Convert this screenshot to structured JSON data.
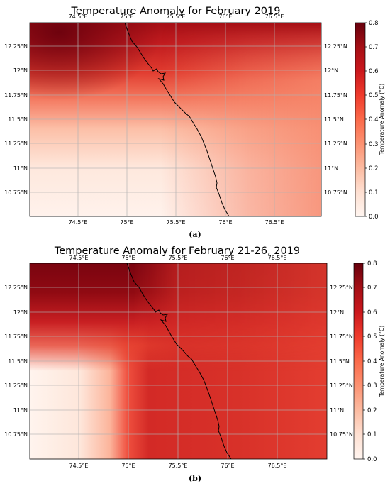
{
  "panels": [
    {
      "title": "Temperature Anomaly for February 2019",
      "caption": "(a)"
    },
    {
      "title": "Temperature Anomaly for February 21-26, 2019",
      "caption": "(b)"
    }
  ],
  "colorbar": {
    "label": "Temperature Anomaly (°C)",
    "ticks": [
      "0.0",
      "0.1",
      "0.2",
      "0.3",
      "0.4",
      "0.5",
      "0.6",
      "0.7",
      "0.8"
    ],
    "range": [
      0,
      0.8
    ],
    "colormap": "Reds"
  },
  "lon_ticks": [
    "74.5°E",
    "75°E",
    "75.5°E",
    "76°E",
    "76.5°E"
  ],
  "lat_ticks": [
    "12.25°N",
    "12°N",
    "11.75°N",
    "11.5°N",
    "11.25°N",
    "11°N",
    "10.75°N"
  ],
  "chart_data": [
    {
      "type": "heatmap",
      "title": "Temperature Anomaly for February 2019",
      "x_range": [
        74.0,
        77.0
      ],
      "y_range": [
        10.5,
        12.5
      ],
      "value_range": [
        0,
        0.8
      ],
      "anomaly_description_points": [
        {
          "lon": 74.3,
          "lat": 12.4,
          "value": 0.78
        },
        {
          "lon": 74.5,
          "lat": 12.0,
          "value": 0.55
        },
        {
          "lon": 75.5,
          "lat": 12.3,
          "value": 0.6
        },
        {
          "lon": 76.5,
          "lat": 12.0,
          "value": 0.48
        },
        {
          "lon": 74.5,
          "lat": 11.0,
          "value": 0.05
        },
        {
          "lon": 76.5,
          "lat": 10.8,
          "value": 0.3
        }
      ]
    },
    {
      "type": "heatmap",
      "title": "Temperature Anomaly for February 21-26, 2019",
      "x_range": [
        74.0,
        77.0
      ],
      "y_range": [
        10.5,
        12.5
      ],
      "value_range": [
        0,
        0.8
      ],
      "anomaly_description_points": [
        {
          "lon": 74.3,
          "lat": 12.3,
          "value": 0.8
        },
        {
          "lon": 75.5,
          "lat": 12.2,
          "value": 0.62
        },
        {
          "lon": 76.5,
          "lat": 12.0,
          "value": 0.6
        },
        {
          "lon": 74.4,
          "lat": 11.0,
          "value": 0.02
        },
        {
          "lon": 75.6,
          "lat": 11.0,
          "value": 0.6
        },
        {
          "lon": 76.5,
          "lat": 10.8,
          "value": 0.55
        }
      ]
    }
  ]
}
